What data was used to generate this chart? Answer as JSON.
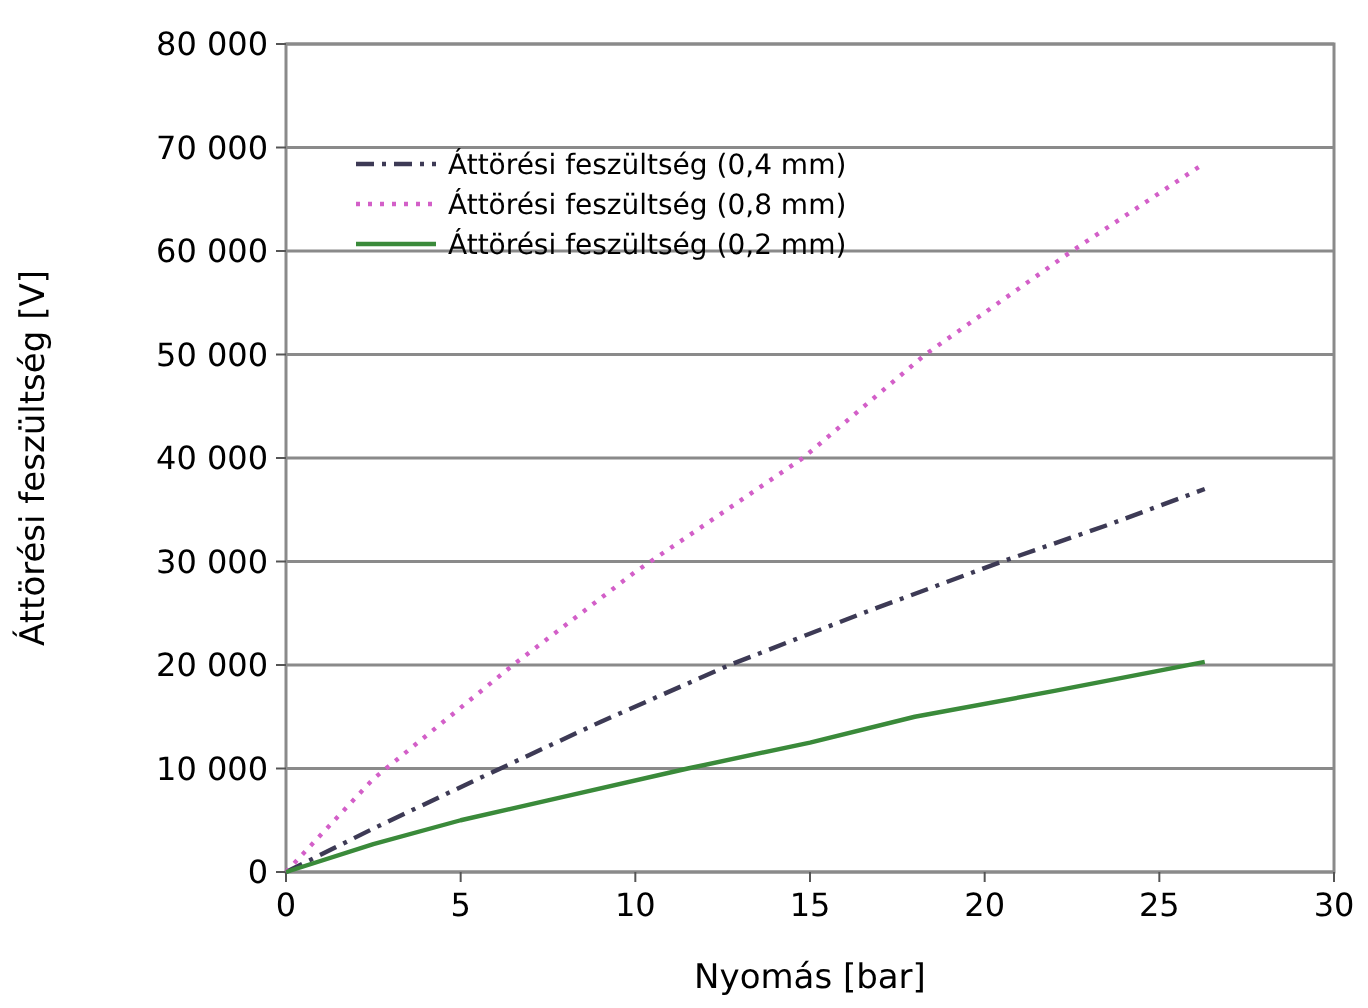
{
  "chart_data": {
    "type": "line",
    "xlabel": "Nyomás [bar]",
    "ylabel": "Áttörési feszültség [V]",
    "xlim": [
      0,
      30
    ],
    "xticks": [
      0,
      5,
      10,
      15,
      20,
      25,
      30
    ],
    "ylim": [
      0,
      80000
    ],
    "yticks": [
      0,
      {
        "value": 10000,
        "label": "10 000"
      },
      {
        "value": 20000,
        "label": "20 000"
      },
      {
        "value": 30000,
        "label": "30 000"
      },
      {
        "value": 40000,
        "label": "40 000"
      },
      {
        "value": 50000,
        "label": "50 000"
      },
      {
        "value": 60000,
        "label": "60 000"
      },
      {
        "value": 70000,
        "label": "70 000"
      },
      {
        "value": 80000,
        "label": "80 000"
      }
    ],
    "grid": "y",
    "legend": "top left",
    "series": [
      {
        "name": "Áttörési feszültség (0,4 mm)",
        "color": "#3d3a55",
        "line_style": "dashdot",
        "x": [
          0,
          2.5,
          5.5,
          9,
          12.7,
          16.5,
          20.5,
          23.5,
          26.3
        ],
        "values": [
          0,
          4200,
          9000,
          14500,
          20000,
          25000,
          30000,
          33500,
          37000
        ]
      },
      {
        "name": "Áttörési feszültség (0,8 mm)",
        "color": "#d35fc8",
        "line_style": "dotted",
        "x": [
          0,
          2.5,
          6.5,
          10,
          14.8,
          18.3,
          22.5,
          26.3
        ],
        "values": [
          0,
          9000,
          20000,
          29000,
          40000,
          50000,
          60000,
          68500
        ]
      },
      {
        "name": "Áttörési feszültség (0,2 mm)",
        "color": "#3a8a3a",
        "line_style": "solid",
        "x": [
          0,
          2.5,
          5,
          8,
          11.5,
          15,
          18,
          22,
          26.3
        ],
        "values": [
          0,
          2700,
          5000,
          7300,
          10000,
          12500,
          15000,
          17500,
          20300
        ]
      }
    ]
  }
}
